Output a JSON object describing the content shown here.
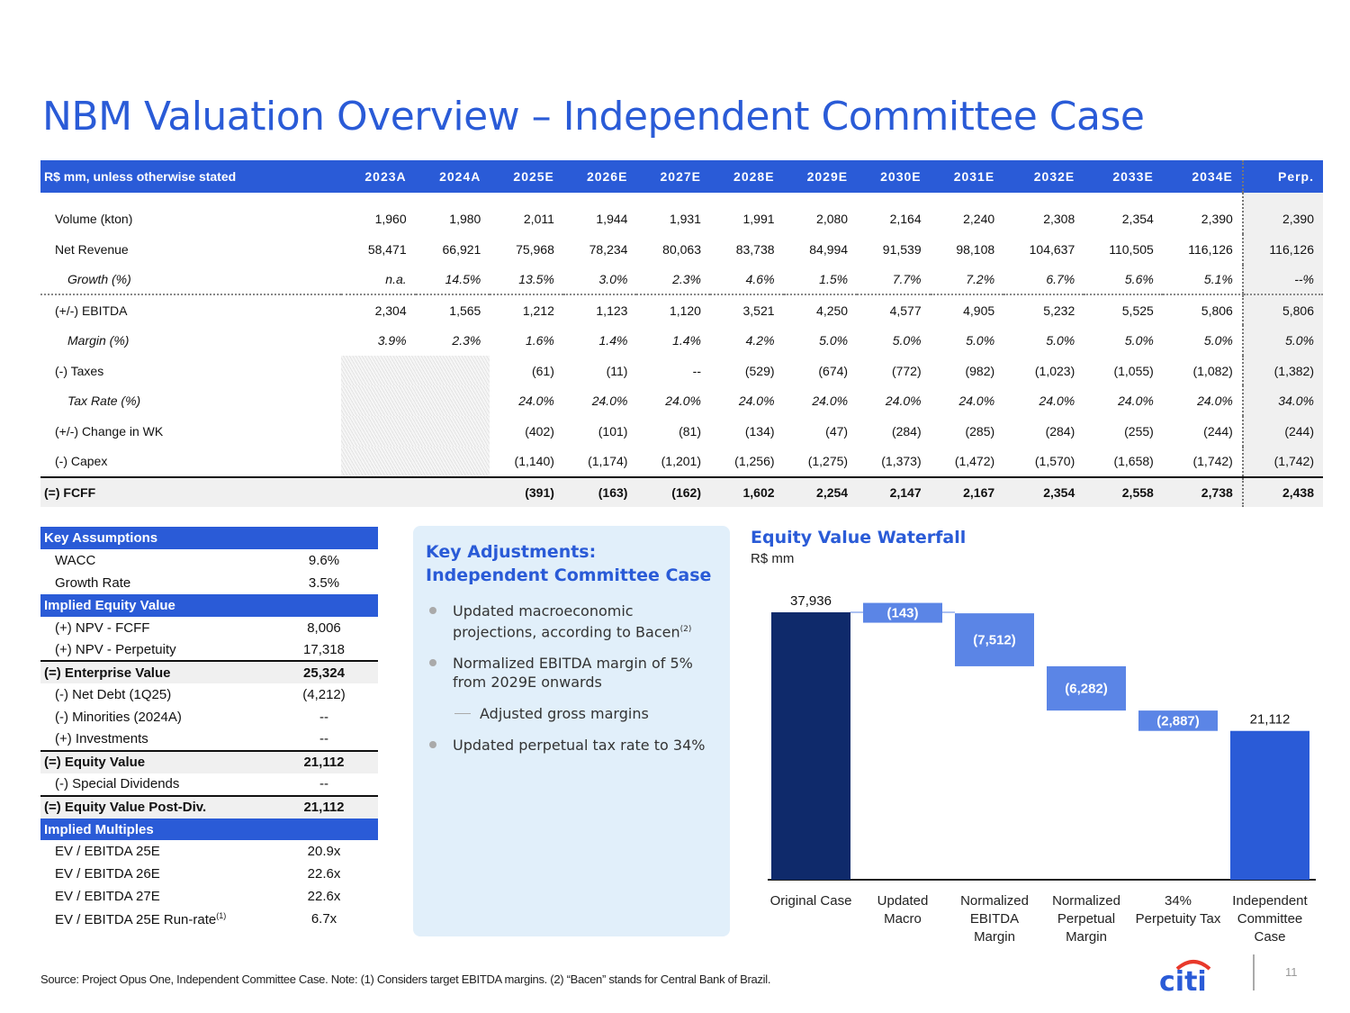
{
  "title": "NBM Valuation Overview – Independent Committee Case",
  "main_table": {
    "header_label": "R$ mm, unless otherwise stated",
    "columns": [
      "2023A",
      "2024A",
      "2025E",
      "2026E",
      "2027E",
      "2028E",
      "2029E",
      "2030E",
      "2031E",
      "2032E",
      "2033E",
      "2034E",
      "Perp."
    ],
    "rows": [
      {
        "label": "Volume (kton)",
        "values": [
          "1,960",
          "1,980",
          "2,011",
          "1,944",
          "1,931",
          "1,991",
          "2,080",
          "2,164",
          "2,240",
          "2,308",
          "2,354",
          "2,390",
          "2,390"
        ]
      },
      {
        "label": "Net Revenue",
        "values": [
          "58,471",
          "66,921",
          "75,968",
          "78,234",
          "80,063",
          "83,738",
          "84,994",
          "91,539",
          "98,108",
          "104,637",
          "110,505",
          "116,126",
          "116,126"
        ]
      },
      {
        "label": "Growth (%)",
        "values": [
          "n.a.",
          "14.5%",
          "13.5%",
          "3.0%",
          "2.3%",
          "4.6%",
          "1.5%",
          "7.7%",
          "7.2%",
          "6.7%",
          "5.6%",
          "5.1%",
          "--%"
        ]
      },
      {
        "label": "(+/-) EBITDA",
        "values": [
          "2,304",
          "1,565",
          "1,212",
          "1,123",
          "1,120",
          "3,521",
          "4,250",
          "4,577",
          "4,905",
          "5,232",
          "5,525",
          "5,806",
          "5,806"
        ]
      },
      {
        "label": "Margin (%)",
        "values": [
          "3.9%",
          "2.3%",
          "1.6%",
          "1.4%",
          "1.4%",
          "4.2%",
          "5.0%",
          "5.0%",
          "5.0%",
          "5.0%",
          "5.0%",
          "5.0%",
          "5.0%"
        ]
      },
      {
        "label": "(-) Taxes",
        "values": [
          "",
          "",
          "(61)",
          "(11)",
          "--",
          "(529)",
          "(674)",
          "(772)",
          "(982)",
          "(1,023)",
          "(1,055)",
          "(1,082)",
          "(1,382)"
        ]
      },
      {
        "label": "Tax Rate (%)",
        "values": [
          "",
          "",
          "24.0%",
          "24.0%",
          "24.0%",
          "24.0%",
          "24.0%",
          "24.0%",
          "24.0%",
          "24.0%",
          "24.0%",
          "24.0%",
          "34.0%"
        ]
      },
      {
        "label": "(+/-) Change in WK",
        "values": [
          "",
          "",
          "(402)",
          "(101)",
          "(81)",
          "(134)",
          "(47)",
          "(284)",
          "(285)",
          "(284)",
          "(255)",
          "(244)",
          "(244)"
        ]
      },
      {
        "label": "(-) Capex",
        "values": [
          "",
          "",
          "(1,140)",
          "(1,174)",
          "(1,201)",
          "(1,256)",
          "(1,275)",
          "(1,373)",
          "(1,472)",
          "(1,570)",
          "(1,658)",
          "(1,742)",
          "(1,742)"
        ]
      },
      {
        "label": "(=) FCFF",
        "values": [
          "",
          "",
          "(391)",
          "(163)",
          "(162)",
          "1,602",
          "2,254",
          "2,147",
          "2,167",
          "2,354",
          "2,558",
          "2,738",
          "2,438"
        ]
      }
    ]
  },
  "key_assumptions": {
    "sections": [
      {
        "header": "Key Assumptions",
        "rows": [
          {
            "label": "WACC",
            "value": "9.6%"
          },
          {
            "label": "Growth Rate",
            "value": "3.5%"
          }
        ]
      },
      {
        "header": "Implied Equity Value",
        "rows": [
          {
            "label": "(+) NPV - FCFF",
            "value": "8,006"
          },
          {
            "label": "(+) NPV - Perpetuity",
            "value": "17,318"
          },
          {
            "label": "(=) Enterprise Value",
            "value": "25,324",
            "bold": true
          },
          {
            "label": "(-) Net Debt (1Q25)",
            "value": "(4,212)"
          },
          {
            "label": "(-) Minorities (2024A)",
            "value": "--"
          },
          {
            "label": "(+) Investments",
            "value": "--"
          },
          {
            "label": "(=) Equity Value",
            "value": "21,112",
            "bold": true
          },
          {
            "label": "(-) Special Dividends",
            "value": "--"
          },
          {
            "label": "(=) Equity Value Post-Div.",
            "value": "21,112",
            "bold": true
          }
        ]
      },
      {
        "header": "Implied Multiples",
        "rows": [
          {
            "label": "EV / EBITDA 25E",
            "value": "20.9x"
          },
          {
            "label": "EV / EBITDA 26E",
            "value": "22.6x"
          },
          {
            "label": "EV / EBITDA 27E",
            "value": "22.6x"
          },
          {
            "label": "EV / EBITDA 25E Run-rate",
            "sup": "(1)",
            "value": "6.7x"
          }
        ]
      }
    ]
  },
  "adjustments": {
    "title": "Key Adjustments: Independent Committee Case",
    "items": [
      {
        "text": "Updated macroeconomic projections, according to Bacen",
        "sup": "(2)"
      },
      {
        "text": "Normalized EBITDA margin of 5% from 2029E onwards"
      },
      {
        "text": "Adjusted gross margins",
        "sub": true
      },
      {
        "text": "Updated perpetual tax rate to 34%"
      }
    ]
  },
  "chart_data": {
    "type": "waterfall",
    "title": "Equity Value Waterfall",
    "subtitle": "R$ mm",
    "categories": [
      "Original Case",
      "Updated Macro",
      "Normalized EBITDA Margin",
      "Normalized Perpetual Margin",
      "34% Perpetuity Tax Rate",
      "Independent Committee Case"
    ],
    "values": [
      37936,
      -143,
      -7512,
      -6282,
      -2887,
      21112
    ],
    "labels": [
      "37,936",
      "(143)",
      "(7,512)",
      "(6,282)",
      "(2,887)",
      "21,112"
    ],
    "kinds": [
      "total",
      "delta",
      "delta",
      "delta",
      "delta",
      "total"
    ],
    "colors": {
      "start": "#0f2a6b",
      "delta": "#5b85e6",
      "end": "#2a5bd7"
    },
    "ylim": [
      0,
      37936
    ]
  },
  "footer": {
    "note": "Source: Project Opus One, Independent Committee Case. Note: (1) Considers target EBITDA margins. (2) “Bacen” stands for Central Bank of Brazil.",
    "logo": "citi",
    "page": "11"
  }
}
